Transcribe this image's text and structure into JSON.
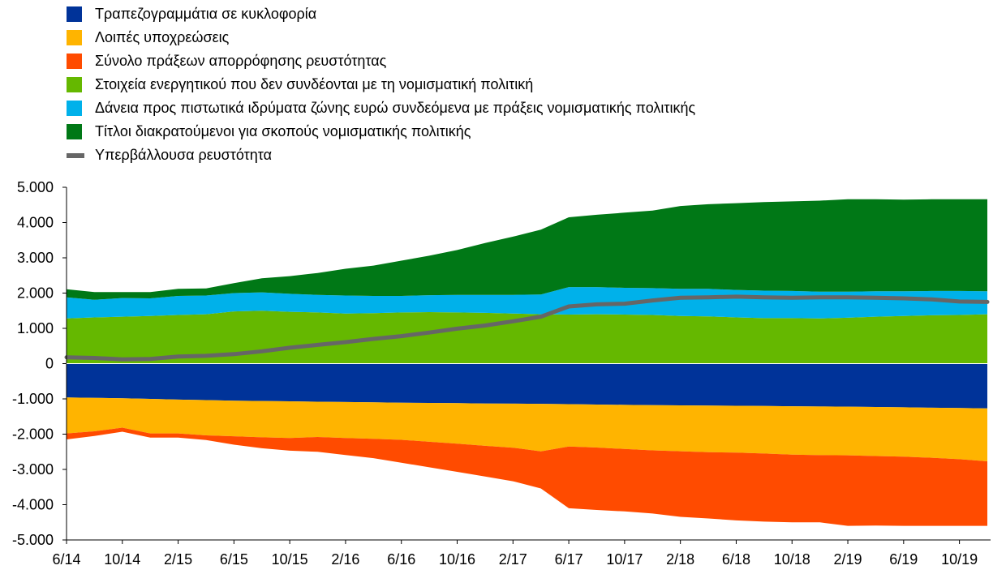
{
  "chart_data": {
    "type": "area",
    "title": "",
    "xlabel": "",
    "ylabel": "",
    "ylim": [
      -5000,
      5000
    ],
    "yticks": [
      -5000,
      -4000,
      -3000,
      -2000,
      -1000,
      0,
      1000,
      2000,
      3000,
      4000,
      5000
    ],
    "ytick_labels": [
      "-5.000",
      "-4.000",
      "-3.000",
      "-2.000",
      "-1.000",
      "0",
      "1.000",
      "2.000",
      "3.000",
      "4.000",
      "5.000"
    ],
    "xtick_labels": [
      "6/14",
      "10/14",
      "2/15",
      "6/15",
      "10/15",
      "2/16",
      "6/16",
      "10/16",
      "2/17",
      "6/17",
      "10/17",
      "2/18",
      "6/18",
      "10/18",
      "2/19",
      "6/19",
      "10/19"
    ],
    "x": [
      "6/14",
      "8/14",
      "10/14",
      "12/14",
      "2/15",
      "4/15",
      "6/15",
      "8/15",
      "10/15",
      "12/15",
      "2/16",
      "4/16",
      "6/16",
      "8/16",
      "10/16",
      "12/16",
      "2/17",
      "4/17",
      "6/17",
      "8/17",
      "10/17",
      "12/17",
      "2/18",
      "4/18",
      "6/18",
      "8/18",
      "10/18",
      "12/18",
      "2/19",
      "4/19",
      "6/19",
      "8/19",
      "10/19",
      "12/19"
    ],
    "grid": false,
    "legend_position": "top-left",
    "series": [
      {
        "name": "Τραπεζογραμμάτια σε κυκλοφορία",
        "color": "#003399",
        "stack": "negative",
        "values": [
          -960,
          -970,
          -985,
          -1000,
          -1020,
          -1035,
          -1050,
          -1060,
          -1070,
          -1080,
          -1090,
          -1100,
          -1110,
          -1115,
          -1120,
          -1130,
          -1135,
          -1140,
          -1150,
          -1160,
          -1170,
          -1180,
          -1185,
          -1190,
          -1195,
          -1200,
          -1210,
          -1215,
          -1220,
          -1230,
          -1240,
          -1250,
          -1260,
          -1270
        ]
      },
      {
        "name": "Λοιπές υποχρεώσεις",
        "color": "#FFB400",
        "stack": "negative",
        "values": [
          -1020,
          -950,
          -830,
          -980,
          -960,
          -1000,
          -1010,
          -1030,
          -1040,
          -1000,
          -1020,
          -1030,
          -1050,
          -1100,
          -1150,
          -1200,
          -1250,
          -1350,
          -1200,
          -1220,
          -1250,
          -1280,
          -1300,
          -1320,
          -1330,
          -1350,
          -1370,
          -1380,
          -1380,
          -1390,
          -1400,
          -1420,
          -1450,
          -1500
        ]
      },
      {
        "name": "Σύνολο πράξεων απορρόφησης ρευστότητας",
        "color": "#FF4B00",
        "stack": "negative",
        "values": [
          -170,
          -130,
          -115,
          -120,
          -120,
          -130,
          -240,
          -310,
          -360,
          -420,
          -480,
          -550,
          -650,
          -725,
          -800,
          -870,
          -950,
          -1050,
          -1750,
          -1770,
          -1770,
          -1790,
          -1860,
          -1880,
          -1920,
          -1930,
          -1920,
          -1905,
          -2000,
          -1970,
          -1960,
          -1930,
          -1890,
          -1830
        ]
      },
      {
        "name": "Στοιχεία ενεργητικού που δεν συνδέονται με τη νομισματική πολιτική",
        "color": "#65B800",
        "stack": "positive",
        "values": [
          1280,
          1310,
          1330,
          1350,
          1380,
          1400,
          1480,
          1500,
          1470,
          1450,
          1420,
          1430,
          1450,
          1460,
          1450,
          1440,
          1420,
          1400,
          1390,
          1400,
          1390,
          1380,
          1350,
          1340,
          1310,
          1290,
          1290,
          1280,
          1300,
          1330,
          1350,
          1370,
          1380,
          1400
        ]
      },
      {
        "name": "Δάνεια προς πιστωτικά ιδρύματα ζώνης ευρώ συνδεόμενα με πράξεις νομισματικής πολιτικής",
        "color": "#00B1EA",
        "stack": "positive",
        "values": [
          600,
          500,
          530,
          500,
          540,
          530,
          520,
          520,
          510,
          500,
          510,
          490,
          470,
          480,
          500,
          510,
          530,
          560,
          780,
          770,
          760,
          760,
          770,
          780,
          780,
          780,
          770,
          760,
          740,
          720,
          700,
          690,
          680,
          650
        ]
      },
      {
        "name": "Τίτλοι διακρατούμενοι για σκοπούς νομισματικής πολιτικής",
        "color": "#007816",
        "stack": "positive",
        "values": [
          230,
          220,
          170,
          180,
          200,
          200,
          280,
          400,
          500,
          620,
          760,
          860,
          1000,
          1120,
          1270,
          1470,
          1650,
          1840,
          1980,
          2050,
          2130,
          2200,
          2350,
          2400,
          2460,
          2510,
          2540,
          2580,
          2620,
          2610,
          2600,
          2600,
          2600,
          2610
        ]
      },
      {
        "name": "Υπερβάλλουσα ρευστότητα",
        "color": "#666666",
        "type": "line",
        "values": [
          180,
          160,
          120,
          130,
          200,
          220,
          270,
          350,
          450,
          530,
          610,
          700,
          780,
          880,
          990,
          1080,
          1200,
          1330,
          1620,
          1680,
          1700,
          1790,
          1870,
          1880,
          1900,
          1880,
          1870,
          1880,
          1880,
          1870,
          1850,
          1820,
          1760,
          1750
        ]
      }
    ]
  }
}
